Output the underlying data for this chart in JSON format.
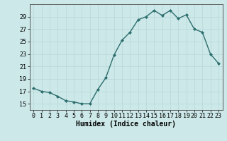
{
  "x": [
    0,
    1,
    2,
    3,
    4,
    5,
    6,
    7,
    8,
    9,
    10,
    11,
    12,
    13,
    14,
    15,
    16,
    17,
    18,
    19,
    20,
    21,
    22,
    23
  ],
  "y": [
    17.5,
    17.0,
    16.8,
    16.2,
    15.5,
    15.3,
    15.0,
    15.0,
    17.3,
    19.2,
    22.8,
    25.2,
    26.5,
    28.5,
    29.0,
    30.0,
    29.2,
    30.0,
    28.7,
    29.3,
    27.0,
    26.5,
    23.0,
    21.5
  ],
  "line_color": "#2d6e6e",
  "marker": "D",
  "marker_size": 2,
  "bg_color": "#cce8e8",
  "grid_color": "#b8d8d8",
  "xlabel": "Humidex (Indice chaleur)",
  "xlim": [
    -0.5,
    23.5
  ],
  "ylim": [
    14,
    31
  ],
  "yticks": [
    15,
    17,
    19,
    21,
    23,
    25,
    27,
    29
  ],
  "xticks": [
    0,
    1,
    2,
    3,
    4,
    5,
    6,
    7,
    8,
    9,
    10,
    11,
    12,
    13,
    14,
    15,
    16,
    17,
    18,
    19,
    20,
    21,
    22,
    23
  ],
  "xlabel_fontsize": 7,
  "tick_fontsize": 6,
  "line_width": 1.0
}
